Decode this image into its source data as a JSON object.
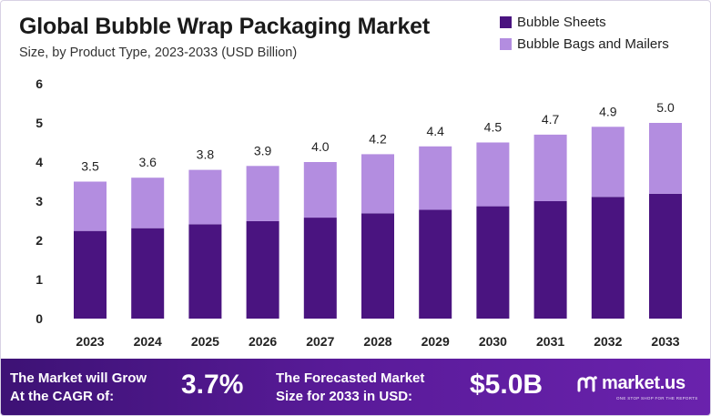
{
  "header": {
    "title": "Global Bubble Wrap Packaging Market",
    "subtitle": "Size, by Product Type, 2023-2033 (USD Billion)"
  },
  "legend": [
    {
      "label": "Bubble Sheets",
      "color": "#4a1480"
    },
    {
      "label": "Bubble Bags and Mailers",
      "color": "#b38de0"
    }
  ],
  "chart_data": {
    "type": "bar",
    "stacked": true,
    "categories": [
      "2023",
      "2024",
      "2025",
      "2026",
      "2027",
      "2028",
      "2029",
      "2030",
      "2031",
      "2032",
      "2033"
    ],
    "series": [
      {
        "name": "Bubble Sheets",
        "values": [
          2.24,
          2.31,
          2.41,
          2.49,
          2.58,
          2.69,
          2.78,
          2.87,
          3.0,
          3.11,
          3.19
        ],
        "color": "#4a1480"
      },
      {
        "name": "Bubble Bags and Mailers",
        "values": [
          1.26,
          1.29,
          1.39,
          1.41,
          1.42,
          1.51,
          1.62,
          1.63,
          1.7,
          1.79,
          1.81
        ],
        "color": "#b38de0"
      }
    ],
    "totals": [
      "3.5",
      "3.6",
      "3.8",
      "3.9",
      "4.0",
      "4.2",
      "4.4",
      "4.5",
      "4.7",
      "4.9",
      "5.0"
    ],
    "yticks": [
      "0",
      "1",
      "2",
      "3",
      "4",
      "5",
      "6"
    ],
    "ylim": [
      0,
      6
    ],
    "grid": false,
    "legend_position": "top-right"
  },
  "footer": {
    "cagr_label_line1": "The Market will Grow",
    "cagr_label_line2": "At the CAGR of:",
    "cagr_value": "3.7%",
    "forecast_label_line1": "The Forecasted Market",
    "forecast_label_line2": "Size for 2033 in USD:",
    "forecast_value": "$5.0B",
    "brand_name": "market.us",
    "brand_tagline": "ONE STOP SHOP FOR THE REPORTS"
  }
}
